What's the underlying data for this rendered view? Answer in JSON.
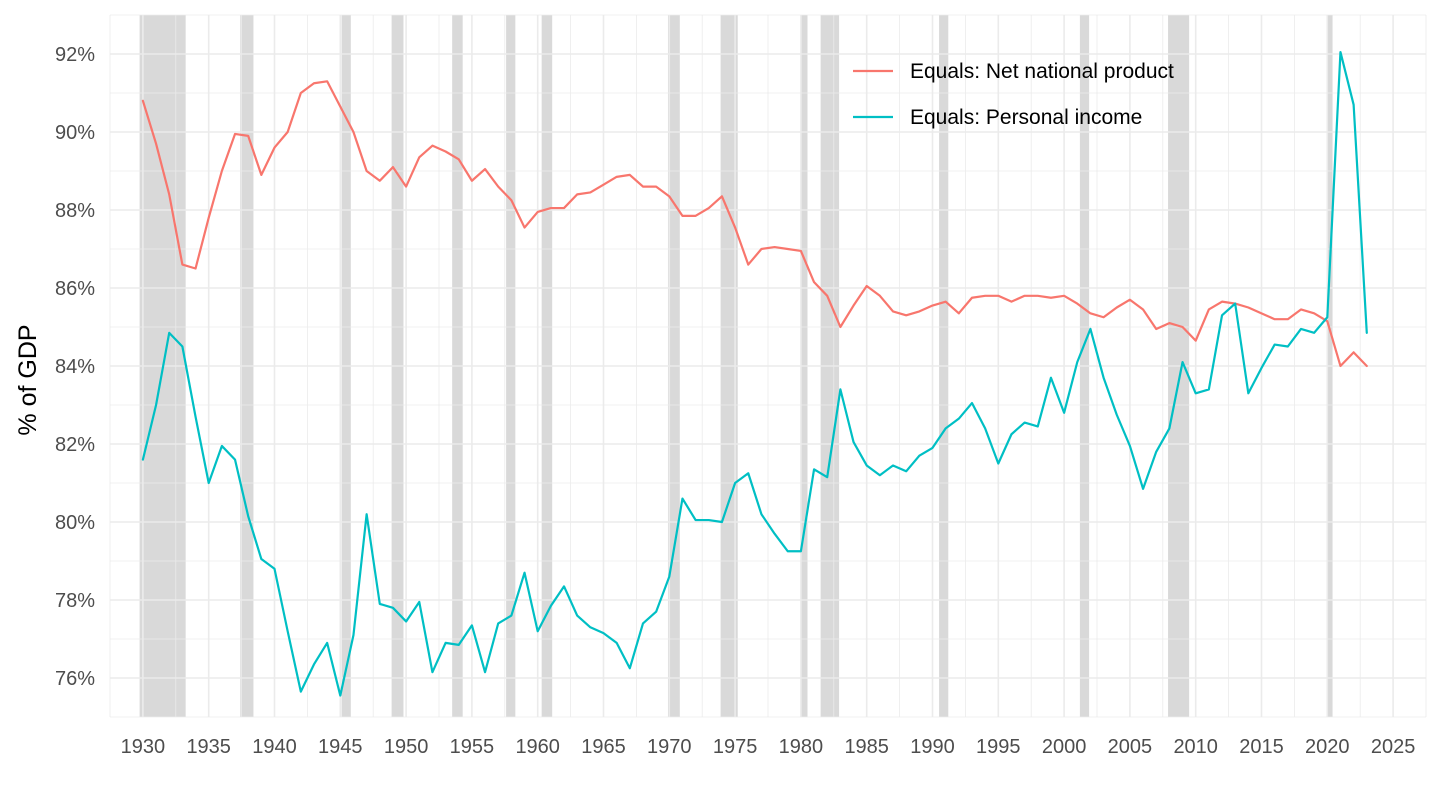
{
  "chart_data": {
    "type": "line",
    "title": "",
    "xlabel": "",
    "ylabel": "% of GDP",
    "xlim": [
      1927.5,
      2027.5
    ],
    "ylim": [
      75.0,
      93.0
    ],
    "x_ticks": [
      1930,
      1935,
      1940,
      1945,
      1950,
      1955,
      1960,
      1965,
      1970,
      1975,
      1980,
      1985,
      1990,
      1995,
      2000,
      2005,
      2010,
      2015,
      2020,
      2025
    ],
    "y_ticks": [
      76,
      78,
      80,
      82,
      84,
      86,
      88,
      90,
      92
    ],
    "y_tick_suffix": "%",
    "grid": true,
    "legend_position": "top-right",
    "recession_shading_color": "#d9d9d9",
    "recessions": [
      [
        1929.75,
        1933.25
      ],
      [
        1937.4,
        1938.4
      ],
      [
        1945.1,
        1945.8
      ],
      [
        1948.9,
        1949.8
      ],
      [
        1953.5,
        1954.3
      ],
      [
        1957.6,
        1958.3
      ],
      [
        1960.3,
        1961.1
      ],
      [
        1969.9,
        1970.8
      ],
      [
        1973.9,
        1975.2
      ],
      [
        1980.0,
        1980.5
      ],
      [
        1981.5,
        1982.9
      ],
      [
        1990.5,
        1991.2
      ],
      [
        2001.2,
        2001.9
      ],
      [
        2007.9,
        2009.5
      ],
      [
        2020.0,
        2020.4
      ]
    ],
    "series": [
      {
        "name": "Equals: Net national product",
        "color": "#F8766D",
        "x": [
          1930,
          1931,
          1932,
          1933,
          1934,
          1935,
          1936,
          1937,
          1938,
          1939,
          1940,
          1941,
          1942,
          1943,
          1944,
          1945,
          1946,
          1947,
          1948,
          1949,
          1950,
          1951,
          1952,
          1953,
          1954,
          1955,
          1956,
          1957,
          1958,
          1959,
          1960,
          1961,
          1962,
          1963,
          1964,
          1965,
          1966,
          1967,
          1968,
          1969,
          1970,
          1971,
          1972,
          1973,
          1974,
          1975,
          1976,
          1977,
          1978,
          1979,
          1980,
          1981,
          1982,
          1983,
          1984,
          1985,
          1986,
          1987,
          1988,
          1989,
          1990,
          1991,
          1992,
          1993,
          1994,
          1995,
          1996,
          1997,
          1998,
          1999,
          2000,
          2001,
          2002,
          2003,
          2004,
          2005,
          2006,
          2007,
          2008,
          2009,
          2010,
          2011,
          2012,
          2013,
          2014,
          2015,
          2016,
          2017,
          2018,
          2019,
          2020,
          2021,
          2022,
          2023
        ],
        "values": [
          90.8,
          89.7,
          88.4,
          86.6,
          86.5,
          87.8,
          89.0,
          89.95,
          89.9,
          88.9,
          89.6,
          90.0,
          91.0,
          91.25,
          91.3,
          90.65,
          90.0,
          89.0,
          88.75,
          89.1,
          88.6,
          89.35,
          89.65,
          89.5,
          89.3,
          88.75,
          89.05,
          88.6,
          88.25,
          87.55,
          87.95,
          88.05,
          88.05,
          88.4,
          88.45,
          88.65,
          88.85,
          88.9,
          88.6,
          88.6,
          88.35,
          87.85,
          87.85,
          88.05,
          88.35,
          87.55,
          86.6,
          87.0,
          87.05,
          87.0,
          86.95,
          86.15,
          85.8,
          85.0,
          85.55,
          86.05,
          85.8,
          85.4,
          85.3,
          85.4,
          85.55,
          85.65,
          85.35,
          85.75,
          85.8,
          85.8,
          85.65,
          85.8,
          85.8,
          85.75,
          85.8,
          85.6,
          85.35,
          85.25,
          85.5,
          85.7,
          85.45,
          84.95,
          85.1,
          85.0,
          84.65,
          85.45,
          85.65,
          85.6,
          85.5,
          85.35,
          85.2,
          85.2,
          85.45,
          85.35,
          85.15,
          84.0,
          84.35,
          84.0
        ]
      },
      {
        "name": "Equals: Personal income",
        "color": "#00BFC4",
        "x": [
          1930,
          1931,
          1932,
          1933,
          1934,
          1935,
          1936,
          1937,
          1938,
          1939,
          1940,
          1941,
          1942,
          1943,
          1944,
          1945,
          1946,
          1947,
          1948,
          1949,
          1950,
          1951,
          1952,
          1953,
          1954,
          1955,
          1956,
          1957,
          1958,
          1959,
          1960,
          1961,
          1962,
          1963,
          1964,
          1965,
          1966,
          1967,
          1968,
          1969,
          1970,
          1971,
          1972,
          1973,
          1974,
          1975,
          1976,
          1977,
          1978,
          1979,
          1980,
          1981,
          1982,
          1983,
          1984,
          1985,
          1986,
          1987,
          1988,
          1989,
          1990,
          1991,
          1992,
          1993,
          1994,
          1995,
          1996,
          1997,
          1998,
          1999,
          2000,
          2001,
          2002,
          2003,
          2004,
          2005,
          2006,
          2007,
          2008,
          2009,
          2010,
          2011,
          2012,
          2013,
          2014,
          2015,
          2016,
          2017,
          2018,
          2019,
          2020,
          2021,
          2022,
          2023
        ],
        "values": [
          81.6,
          83.0,
          84.85,
          84.5,
          82.7,
          81.0,
          81.95,
          81.6,
          80.15,
          79.05,
          78.8,
          77.2,
          75.65,
          76.35,
          76.9,
          75.55,
          77.1,
          80.2,
          77.9,
          77.8,
          77.45,
          77.95,
          76.15,
          76.9,
          76.85,
          77.35,
          76.15,
          77.4,
          77.6,
          78.7,
          77.2,
          77.85,
          78.35,
          77.6,
          77.3,
          77.15,
          76.9,
          76.25,
          77.4,
          77.7,
          78.6,
          80.6,
          80.05,
          80.05,
          80.0,
          81.0,
          81.25,
          80.2,
          79.7,
          79.25,
          79.25,
          81.35,
          81.15,
          83.4,
          82.05,
          81.45,
          81.2,
          81.45,
          81.3,
          81.7,
          81.9,
          82.4,
          82.65,
          83.05,
          82.4,
          81.5,
          82.25,
          82.55,
          82.45,
          83.7,
          82.8,
          84.1,
          84.95,
          83.7,
          82.75,
          81.95,
          80.85,
          81.8,
          82.4,
          84.1,
          83.3,
          83.4,
          85.3,
          85.6,
          83.3,
          83.95,
          84.55,
          84.5,
          84.95,
          84.85,
          85.25,
          92.05,
          90.7,
          84.85
        ]
      }
    ]
  }
}
